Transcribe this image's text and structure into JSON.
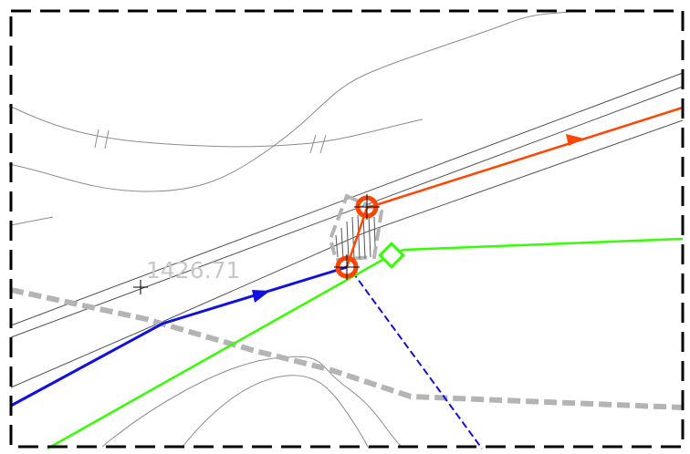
{
  "map": {
    "elevation_label": "1426.71",
    "colors": {
      "background": "#ffffff",
      "frame": "#000000",
      "road_edges": "#555555",
      "contours": "#8c8c8c",
      "gray_boundary": "#b4b4b4",
      "orange_route": "#ff4500",
      "blue_route": "#1010e0",
      "green_route": "#33ff00",
      "marker_hatch": "#555555",
      "elevation_text": "#c8c8c8"
    },
    "icons": {
      "node_marker": "circle-target-icon",
      "crosshair": "plus-crosshair-icon",
      "green_node": "diamond-icon",
      "direction": "arrowhead-icon"
    }
  }
}
